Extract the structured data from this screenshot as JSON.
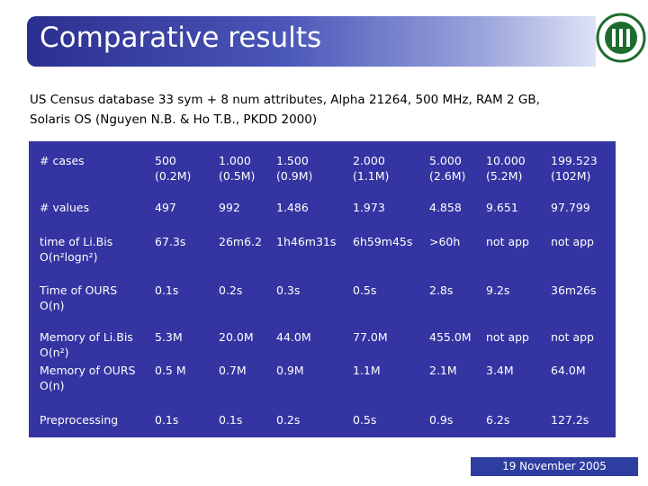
{
  "header": {
    "title": "Comparative results"
  },
  "subtitle": [
    "US Census database 33 sym + 8 num attributes, Alpha 21264, 500 MHz, RAM 2 GB,",
    "Solaris OS (Nguyen N.B. & Ho T.B., PKDD 2000)"
  ],
  "table": {
    "rows": [
      [
        [
          "# cases"
        ],
        [
          "500",
          "(0.2M)"
        ],
        [
          "1.000",
          "(0.5M)"
        ],
        [
          "1.500",
          "(0.9M)"
        ],
        [
          "2.000",
          "(1.1M)"
        ],
        [
          "5.000",
          "(2.6M)"
        ],
        [
          "10.000",
          "(5.2M)"
        ],
        [
          "199.523",
          "(102M)"
        ]
      ],
      [
        [
          "# values"
        ],
        [
          "497"
        ],
        [
          "992"
        ],
        [
          "1.486"
        ],
        [
          "1.973"
        ],
        [
          "4.858"
        ],
        [
          "9.651"
        ],
        [
          "97.799"
        ]
      ],
      [
        [
          "time of Li.Bis",
          "O(n²logn²)"
        ],
        [
          "67.3s"
        ],
        [
          "26m6.2"
        ],
        [
          "1h46m31s"
        ],
        [
          "6h59m45s"
        ],
        [
          ">60h"
        ],
        [
          "not app"
        ],
        [
          "not app"
        ]
      ],
      [
        [
          "Time of OURS",
          "O(n)"
        ],
        [
          "0.1s"
        ],
        [
          "0.2s"
        ],
        [
          "0.3s"
        ],
        [
          "0.5s"
        ],
        [
          "2.8s"
        ],
        [
          "9.2s"
        ],
        [
          "36m26s"
        ]
      ],
      [
        [
          "Memory of Li.Bis",
          "O(n²)"
        ],
        [
          "5.3M"
        ],
        [
          "20.0M"
        ],
        [
          "44.0M"
        ],
        [
          "77.0M"
        ],
        [
          "455.0M"
        ],
        [
          "not app"
        ],
        [
          "not app"
        ]
      ],
      [
        [
          "Memory of OURS",
          "O(n)"
        ],
        [
          "0.5 M"
        ],
        [
          "0.7M"
        ],
        [
          "0.9M"
        ],
        [
          "1.1M"
        ],
        [
          "2.1M"
        ],
        [
          "3.4M"
        ],
        [
          "64.0M"
        ]
      ],
      [
        [
          "Preprocessing"
        ],
        [
          "0.1s"
        ],
        [
          "0.1s"
        ],
        [
          "0.2s"
        ],
        [
          "0.5s"
        ],
        [
          "0.9s"
        ],
        [
          "6.2s"
        ],
        [
          "127.2s"
        ]
      ]
    ]
  },
  "footer": "19 November 2005"
}
